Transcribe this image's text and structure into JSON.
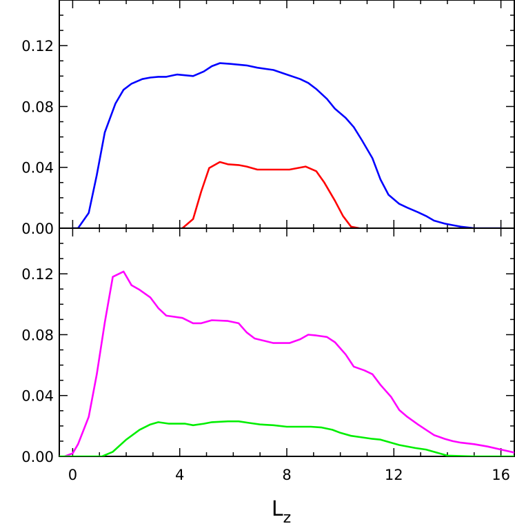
{
  "chart_data": [
    {
      "type": "line",
      "panel": "top",
      "xlabel": "",
      "ylabel": "",
      "xlim": [
        -0.5,
        16.5
      ],
      "ylim": [
        0.0,
        0.15
      ],
      "yticks": [
        0.0,
        0.04,
        0.08,
        0.12
      ],
      "ytick_labels": [
        "0.00",
        "0.04",
        "0.08",
        "0.12"
      ],
      "xtick_labels_shown": false,
      "grid": false,
      "series": [
        {
          "color": "#0000ff",
          "x": [
            0.0,
            0.2,
            0.6,
            0.9,
            1.2,
            1.6,
            1.9,
            2.2,
            2.6,
            2.9,
            3.2,
            3.5,
            3.9,
            4.2,
            4.5,
            4.9,
            5.2,
            5.5,
            5.9,
            6.2,
            6.5,
            6.9,
            7.5,
            8.0,
            8.5,
            8.8,
            9.1,
            9.5,
            9.8,
            10.2,
            10.5,
            10.8,
            11.2,
            11.5,
            11.8,
            12.2,
            12.5,
            12.9,
            13.2,
            13.5,
            13.9,
            14.2,
            14.5,
            15.0,
            15.5,
            16.0
          ],
          "y": [
            0.0,
            0.0,
            0.01,
            0.035,
            0.063,
            0.082,
            0.091,
            0.095,
            0.098,
            0.099,
            0.0995,
            0.0995,
            0.101,
            0.1005,
            0.1,
            0.103,
            0.1065,
            0.1085,
            0.108,
            0.1075,
            0.107,
            0.1055,
            0.104,
            0.101,
            0.098,
            0.0955,
            0.0915,
            0.085,
            0.0785,
            0.0725,
            0.0665,
            0.058,
            0.046,
            0.032,
            0.022,
            0.016,
            0.0135,
            0.0105,
            0.008,
            0.005,
            0.003,
            0.002,
            0.001,
            0.0,
            0.0,
            0.0
          ]
        },
        {
          "color": "#ff0000",
          "x": [
            4.1,
            4.5,
            4.8,
            5.1,
            5.5,
            5.8,
            6.2,
            6.5,
            6.9,
            7.5,
            8.1,
            8.7,
            9.1,
            9.4,
            9.8,
            10.1,
            10.4,
            10.7
          ],
          "y": [
            0.0,
            0.006,
            0.024,
            0.0395,
            0.0435,
            0.042,
            0.0415,
            0.0405,
            0.0385,
            0.0385,
            0.0385,
            0.0405,
            0.0375,
            0.03,
            0.018,
            0.008,
            0.001,
            0.0
          ]
        }
      ]
    },
    {
      "type": "line",
      "panel": "bottom",
      "xlabel": "L",
      "xlabel_subscript": "z",
      "ylabel": "",
      "xlim": [
        -0.5,
        16.5
      ],
      "ylim": [
        0.0,
        0.15
      ],
      "xticks": [
        0,
        4,
        8,
        12,
        16
      ],
      "xtick_labels": [
        "0",
        "4",
        "8",
        "12",
        "16"
      ],
      "yticks": [
        0.0,
        0.04,
        0.08,
        0.12
      ],
      "ytick_labels": [
        "0.00",
        "0.04",
        "0.08",
        "0.12"
      ],
      "grid": false,
      "series": [
        {
          "color": "#ff00ff",
          "x": [
            -0.3,
            0.0,
            0.2,
            0.6,
            0.9,
            1.2,
            1.5,
            1.9,
            2.2,
            2.5,
            2.9,
            3.2,
            3.5,
            4.1,
            4.5,
            4.8,
            5.2,
            5.8,
            6.2,
            6.5,
            6.8,
            7.5,
            8.1,
            8.5,
            8.8,
            9.1,
            9.5,
            9.8,
            10.2,
            10.5,
            10.9,
            11.2,
            11.5,
            11.9,
            12.2,
            12.5,
            12.9,
            13.2,
            13.5,
            13.9,
            14.2,
            14.5,
            15.0,
            15.5,
            16.0,
            16.5
          ],
          "y": [
            0.0,
            0.002,
            0.008,
            0.026,
            0.054,
            0.088,
            0.118,
            0.1215,
            0.1125,
            0.1095,
            0.1045,
            0.0975,
            0.0925,
            0.091,
            0.0875,
            0.0875,
            0.0895,
            0.089,
            0.0875,
            0.0815,
            0.0775,
            0.0745,
            0.0745,
            0.077,
            0.08,
            0.0795,
            0.0785,
            0.075,
            0.067,
            0.059,
            0.0565,
            0.054,
            0.047,
            0.039,
            0.0305,
            0.026,
            0.021,
            0.0175,
            0.014,
            0.0115,
            0.01,
            0.009,
            0.008,
            0.0065,
            0.0045,
            0.0025
          ]
        },
        {
          "color": "#00ee00",
          "x": [
            -0.5,
            0.5,
            1.1,
            1.5,
            2.0,
            2.5,
            2.9,
            3.2,
            3.6,
            4.2,
            4.5,
            4.9,
            5.2,
            5.8,
            6.2,
            6.6,
            7.0,
            7.5,
            8.0,
            8.5,
            8.9,
            9.3,
            9.7,
            10.0,
            10.4,
            10.8,
            11.2,
            11.5,
            12.2,
            12.8,
            13.2,
            13.6,
            14.0,
            15.0,
            16.5
          ],
          "y": [
            0.0,
            0.0,
            0.0,
            0.003,
            0.011,
            0.0175,
            0.021,
            0.0225,
            0.0215,
            0.0215,
            0.0205,
            0.0215,
            0.0225,
            0.023,
            0.023,
            0.022,
            0.021,
            0.0205,
            0.0195,
            0.0195,
            0.0195,
            0.019,
            0.0175,
            0.0155,
            0.0135,
            0.0125,
            0.0115,
            0.011,
            0.0075,
            0.0055,
            0.0045,
            0.0025,
            0.0005,
            0.0,
            0.0
          ]
        }
      ]
    }
  ]
}
